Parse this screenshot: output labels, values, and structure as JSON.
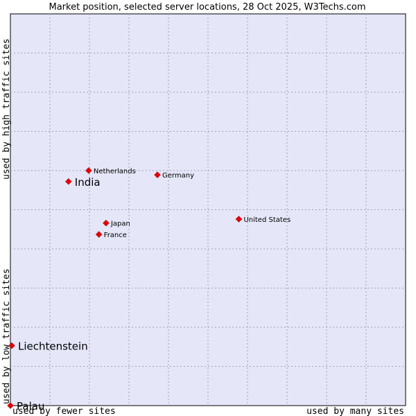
{
  "chart_data": {
    "type": "scatter",
    "title": "Market position, selected server locations, 28 Oct 2025, W3Techs.com",
    "xlabel_left": "used by fewer sites",
    "xlabel_right": "used by many sites",
    "ylabel_bottom": "used by low traffic sites",
    "ylabel_top": "used by high traffic sites",
    "xlim": [
      0,
      100
    ],
    "ylim": [
      0,
      100
    ],
    "grid": true,
    "background": "#e5e6f7",
    "marker_color": "#e3010a",
    "grid_color": "#a0a0b8",
    "points": [
      {
        "label": "Netherlands",
        "x": 19.8,
        "y": 60.0,
        "size": "small"
      },
      {
        "label": "India",
        "x": 14.7,
        "y": 57.2,
        "size": "large"
      },
      {
        "label": "Germany",
        "x": 37.2,
        "y": 58.9,
        "size": "small"
      },
      {
        "label": "United States",
        "x": 57.8,
        "y": 47.6,
        "size": "small"
      },
      {
        "label": "Japan",
        "x": 24.2,
        "y": 46.6,
        "size": "small"
      },
      {
        "label": "France",
        "x": 22.4,
        "y": 43.7,
        "size": "small"
      },
      {
        "label": "Liechtenstein",
        "x": 0.35,
        "y": 15.3,
        "size": "large"
      },
      {
        "label": "Palau",
        "x": 0.0,
        "y": 0.0,
        "size": "large"
      }
    ]
  }
}
